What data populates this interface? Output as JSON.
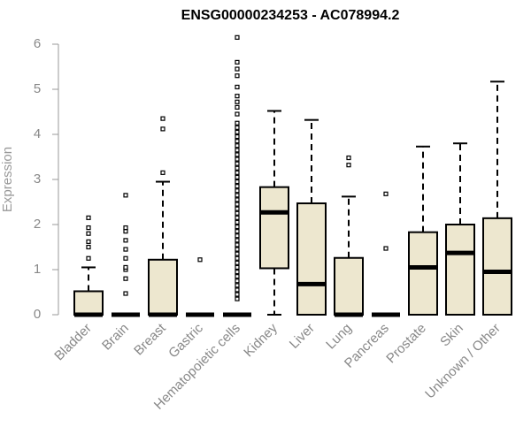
{
  "chart_data": {
    "type": "box",
    "title": "ENSG00000234253 - AC078994.2",
    "ylabel": "Expression",
    "xlabel": "",
    "ylim": [
      0,
      6.2
    ],
    "yticks": [
      "0",
      "1",
      "2",
      "3",
      "4",
      "5",
      "6"
    ],
    "grid": false,
    "colors": {
      "box_fill": "#ede7cf",
      "box_stroke": "#000000",
      "axis": "#999999",
      "median": "#000000"
    },
    "categories": [
      "Bladder",
      "Brain",
      "Breast",
      "Gastric",
      "Hematopoietic cells",
      "Kidney",
      "Liver",
      "Lung",
      "Pancreas",
      "Prostate",
      "Skin",
      "Unknown / Other"
    ],
    "boxes": [
      {
        "q1": 0,
        "median": 0,
        "q3": 0.52,
        "whisker_low": 0,
        "whisker_high": 1.05,
        "outliers": [
          1.25,
          1.5,
          1.62,
          1.8,
          1.93,
          2.15
        ]
      },
      {
        "q1": 0,
        "median": 0,
        "q3": 0,
        "whisker_low": 0,
        "whisker_high": 0,
        "outliers": [
          0.47,
          0.8,
          1.0,
          1.05,
          1.25,
          1.45,
          1.65,
          1.85,
          1.93,
          2.65
        ]
      },
      {
        "q1": 0,
        "median": 0,
        "q3": 1.22,
        "whisker_low": 0,
        "whisker_high": 2.95,
        "outliers": [
          3.15,
          4.12,
          4.35
        ]
      },
      {
        "q1": 0,
        "median": 0,
        "q3": 0,
        "whisker_low": 0,
        "whisker_high": 0,
        "outliers": [
          1.22
        ]
      },
      {
        "q1": 0,
        "median": 0,
        "q3": 0,
        "whisker_low": 0,
        "whisker_high": 0,
        "outliers": [
          0.35,
          0.45,
          0.55,
          0.65,
          0.75,
          0.85,
          0.95,
          1.05,
          1.15,
          1.25,
          1.35,
          1.45,
          1.55,
          1.65,
          1.75,
          1.85,
          1.95,
          2.05,
          2.15,
          2.25,
          2.35,
          2.45,
          2.55,
          2.65,
          2.75,
          2.85,
          2.95,
          3.05,
          3.15,
          3.25,
          3.35,
          3.45,
          3.55,
          3.65,
          3.75,
          3.85,
          3.95,
          4.05,
          4.15,
          4.25,
          4.45,
          4.6,
          4.72,
          4.85,
          5.05,
          5.3,
          5.45,
          5.6,
          6.15
        ]
      },
      {
        "q1": 1.03,
        "median": 2.27,
        "q3": 2.83,
        "whisker_low": 0,
        "whisker_high": 4.52,
        "outliers": []
      },
      {
        "q1": 0,
        "median": 0.68,
        "q3": 2.47,
        "whisker_low": 0,
        "whisker_high": 4.32,
        "outliers": []
      },
      {
        "q1": 0,
        "median": 0,
        "q3": 1.26,
        "whisker_low": 0,
        "whisker_high": 2.62,
        "outliers": [
          3.32,
          3.48
        ]
      },
      {
        "q1": 0,
        "median": 0,
        "q3": 0,
        "whisker_low": 0,
        "whisker_high": 0,
        "outliers": [
          1.47,
          2.68
        ]
      },
      {
        "q1": 0,
        "median": 1.05,
        "q3": 1.83,
        "whisker_low": 0,
        "whisker_high": 3.73,
        "outliers": []
      },
      {
        "q1": 0,
        "median": 1.37,
        "q3": 2.0,
        "whisker_low": 0,
        "whisker_high": 3.8,
        "outliers": []
      },
      {
        "q1": 0,
        "median": 0.95,
        "q3": 2.14,
        "whisker_low": 0,
        "whisker_high": 5.17,
        "outliers": []
      }
    ]
  }
}
